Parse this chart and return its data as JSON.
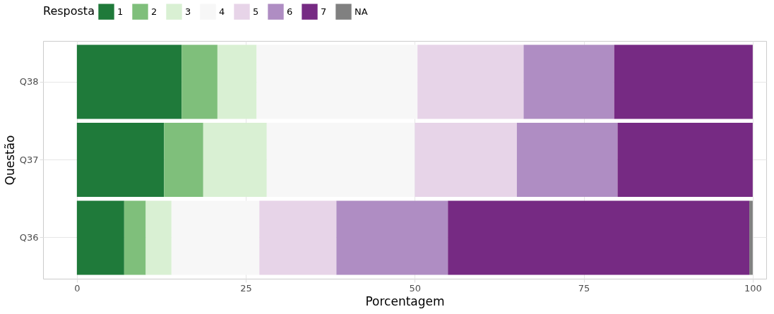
{
  "chart_data": {
    "type": "bar",
    "orientation": "horizontal",
    "stacked": true,
    "xlabel": "Porcentagem",
    "ylabel": "Questão",
    "legend_title": "Resposta",
    "legend": "top",
    "grid": true,
    "categories": [
      "Q38",
      "Q37",
      "Q36"
    ],
    "xlim": [
      -5,
      102
    ],
    "xticks": [
      0,
      25,
      50,
      75,
      100
    ],
    "series": [
      {
        "name": "1",
        "color": "#1f7a3a",
        "values": [
          15.5,
          12.9,
          7.0
        ]
      },
      {
        "name": "2",
        "color": "#7fbf7b",
        "values": [
          5.3,
          5.8,
          3.2
        ]
      },
      {
        "name": "3",
        "color": "#d9f0d3",
        "values": [
          5.8,
          9.4,
          3.8
        ]
      },
      {
        "name": "4",
        "color": "#f7f7f7",
        "values": [
          23.8,
          21.9,
          13.0
        ]
      },
      {
        "name": "5",
        "color": "#e7d4e8",
        "values": [
          15.7,
          15.1,
          11.4
        ]
      },
      {
        "name": "6",
        "color": "#af8dc3",
        "values": [
          13.4,
          14.9,
          16.5
        ]
      },
      {
        "name": "7",
        "color": "#762a83",
        "values": [
          20.5,
          20.0,
          44.6
        ]
      },
      {
        "name": "NA",
        "color": "#808080",
        "values": [
          null,
          null,
          0.5
        ]
      }
    ]
  }
}
